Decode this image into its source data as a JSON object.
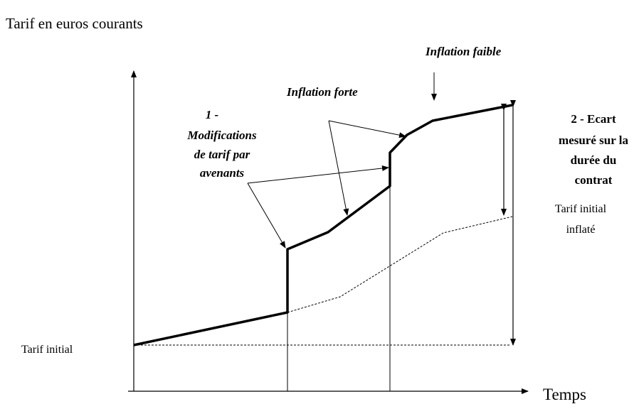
{
  "axes": {
    "y_label": "Tarif en euros courants",
    "x_label": "Temps"
  },
  "labels": {
    "tarif_initial": "Tarif initial",
    "inflation_faible": "Inflation faible",
    "inflation_forte": "Inflation forte",
    "modifications": [
      "1 -",
      "Modifications",
      "de tarif par",
      "avenants"
    ],
    "ecart": [
      "2 - Ecart",
      "mesuré sur la",
      "durée du",
      "contrat"
    ],
    "tarif_inflate": [
      "Tarif initial",
      "inflaté"
    ]
  }
}
